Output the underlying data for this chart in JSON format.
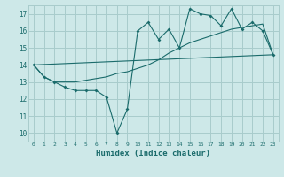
{
  "xlabel": "Humidex (Indice chaleur)",
  "bg_color": "#cde8e8",
  "grid_color": "#a8cccc",
  "line_color": "#1a6b6b",
  "xlim": [
    -0.5,
    23.5
  ],
  "ylim": [
    9.5,
    17.5
  ],
  "yticks": [
    10,
    11,
    12,
    13,
    14,
    15,
    16,
    17
  ],
  "xticks": [
    0,
    1,
    2,
    3,
    4,
    5,
    6,
    7,
    8,
    9,
    10,
    11,
    12,
    13,
    14,
    15,
    16,
    17,
    18,
    19,
    20,
    21,
    22,
    23
  ],
  "line1_x": [
    0,
    1,
    2,
    3,
    4,
    5,
    6,
    7,
    8,
    9,
    10,
    11,
    12,
    13,
    14,
    15,
    16,
    17,
    18,
    19,
    20,
    21,
    22,
    23
  ],
  "line1_y": [
    14.0,
    13.3,
    13.0,
    12.7,
    12.5,
    12.5,
    12.5,
    12.1,
    10.0,
    11.4,
    16.0,
    16.5,
    15.5,
    16.1,
    15.0,
    17.3,
    17.0,
    16.9,
    16.3,
    17.3,
    16.1,
    16.5,
    16.0,
    14.6
  ],
  "line2_x": [
    0,
    1,
    2,
    3,
    4,
    5,
    6,
    7,
    8,
    9,
    10,
    11,
    12,
    13,
    14,
    15,
    16,
    17,
    18,
    19,
    20,
    21,
    22,
    23
  ],
  "line2_y": [
    14.0,
    13.3,
    13.0,
    13.0,
    13.0,
    13.1,
    13.2,
    13.3,
    13.5,
    13.6,
    13.8,
    14.0,
    14.3,
    14.7,
    15.0,
    15.3,
    15.5,
    15.7,
    15.9,
    16.1,
    16.2,
    16.3,
    16.4,
    14.6
  ],
  "line3_x": [
    0,
    23
  ],
  "line3_y": [
    14.0,
    14.6
  ]
}
